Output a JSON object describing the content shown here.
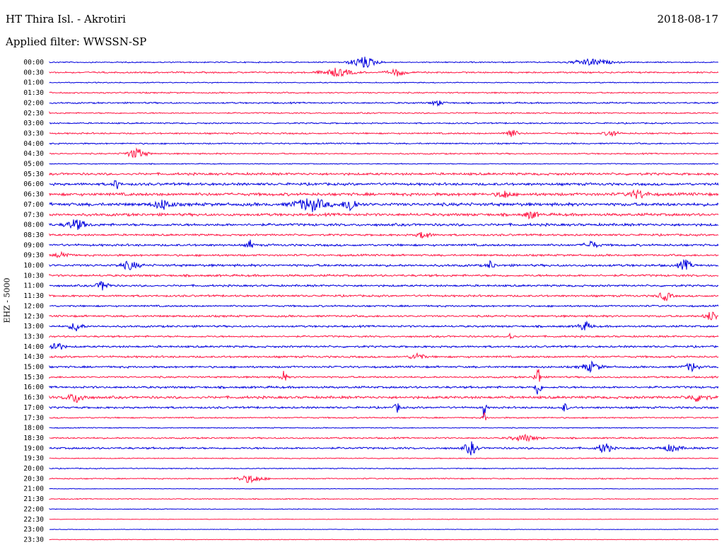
{
  "header": {
    "station": "HT Thira Isl. - Akrotiri",
    "date": "2018-08-17",
    "filter": "Applied filter: WWSSN-SP",
    "channel": "EHZ - 5000"
  },
  "colors": {
    "trace_a": "#0000dd",
    "trace_b": "#ff1744",
    "text": "#000000",
    "background": "#ffffff"
  },
  "chart_data": {
    "type": "line",
    "description_type": "helicorder",
    "row_labels": [
      "00:00",
      "00:30",
      "01:00",
      "01:30",
      "02:00",
      "02:30",
      "03:00",
      "03:30",
      "04:00",
      "04:30",
      "05:00",
      "05:30",
      "06:00",
      "06:30",
      "07:00",
      "07:30",
      "08:00",
      "08:30",
      "09:00",
      "09:30",
      "10:00",
      "10:30",
      "11:00",
      "11:30",
      "12:00",
      "12:30",
      "13:00",
      "13:30",
      "14:00",
      "14:30",
      "15:00",
      "15:30",
      "16:00",
      "16:30",
      "17:00",
      "17:30",
      "18:00",
      "18:30",
      "19:00",
      "19:30",
      "20:00",
      "20:30",
      "21:00",
      "21:30",
      "22:00",
      "22:30",
      "23:00",
      "23:30"
    ],
    "row_colors": [
      "trace_a",
      "trace_b"
    ],
    "row_noise": [
      0.6,
      0.8,
      0.5,
      0.7,
      0.8,
      0.7,
      0.7,
      0.8,
      0.7,
      0.7,
      0.5,
      1.2,
      1.3,
      1.5,
      1.6,
      1.4,
      1.3,
      1.0,
      1.1,
      1.0,
      1.2,
      1.1,
      1.0,
      1.0,
      0.9,
      1.0,
      1.0,
      0.9,
      1.0,
      1.0,
      1.0,
      0.9,
      1.1,
      1.3,
      1.0,
      0.7,
      0.5,
      0.8,
      1.0,
      0.5,
      0.5,
      0.6,
      0.3,
      0.5,
      0.4,
      0.3,
      0.3,
      0.3
    ],
    "events": [
      {
        "row": 0,
        "pos": 0.47,
        "amp": 9,
        "dur": 0.04
      },
      {
        "row": 0,
        "pos": 0.81,
        "amp": 5,
        "dur": 0.06
      },
      {
        "row": 1,
        "pos": 0.43,
        "amp": 6,
        "dur": 0.05
      },
      {
        "row": 1,
        "pos": 0.52,
        "amp": 5,
        "dur": 0.03
      },
      {
        "row": 4,
        "pos": 0.58,
        "amp": 4,
        "dur": 0.02
      },
      {
        "row": 7,
        "pos": 0.69,
        "amp": 7,
        "dur": 0.02
      },
      {
        "row": 7,
        "pos": 0.84,
        "amp": 5,
        "dur": 0.02
      },
      {
        "row": 9,
        "pos": 0.13,
        "amp": 8,
        "dur": 0.03
      },
      {
        "row": 12,
        "pos": 0.1,
        "amp": 8,
        "dur": 0.01
      },
      {
        "row": 13,
        "pos": 0.68,
        "amp": 6,
        "dur": 0.02
      },
      {
        "row": 13,
        "pos": 0.88,
        "amp": 6,
        "dur": 0.03
      },
      {
        "row": 14,
        "pos": 0.17,
        "amp": 7,
        "dur": 0.03
      },
      {
        "row": 14,
        "pos": 0.39,
        "amp": 10,
        "dur": 0.05
      },
      {
        "row": 14,
        "pos": 0.45,
        "amp": 12,
        "dur": 0.02
      },
      {
        "row": 15,
        "pos": 0.72,
        "amp": 6,
        "dur": 0.02
      },
      {
        "row": 16,
        "pos": 0.04,
        "amp": 8,
        "dur": 0.03
      },
      {
        "row": 17,
        "pos": 0.56,
        "amp": 6,
        "dur": 0.02
      },
      {
        "row": 18,
        "pos": 0.3,
        "amp": 7,
        "dur": 0.01
      },
      {
        "row": 18,
        "pos": 0.81,
        "amp": 6,
        "dur": 0.02
      },
      {
        "row": 19,
        "pos": 0.02,
        "amp": 6,
        "dur": 0.02
      },
      {
        "row": 20,
        "pos": 0.12,
        "amp": 6,
        "dur": 0.03
      },
      {
        "row": 20,
        "pos": 0.66,
        "amp": 8,
        "dur": 0.01
      },
      {
        "row": 20,
        "pos": 0.95,
        "amp": 8,
        "dur": 0.02
      },
      {
        "row": 22,
        "pos": 0.08,
        "amp": 7,
        "dur": 0.02
      },
      {
        "row": 23,
        "pos": 0.92,
        "amp": 7,
        "dur": 0.02
      },
      {
        "row": 25,
        "pos": 0.99,
        "amp": 8,
        "dur": 0.02
      },
      {
        "row": 26,
        "pos": 0.04,
        "amp": 7,
        "dur": 0.02
      },
      {
        "row": 26,
        "pos": 0.8,
        "amp": 7,
        "dur": 0.02
      },
      {
        "row": 27,
        "pos": 0.69,
        "amp": 6,
        "dur": 0.01
      },
      {
        "row": 28,
        "pos": 0.01,
        "amp": 8,
        "dur": 0.02
      },
      {
        "row": 29,
        "pos": 0.55,
        "amp": 6,
        "dur": 0.02
      },
      {
        "row": 30,
        "pos": 0.81,
        "amp": 7,
        "dur": 0.03
      },
      {
        "row": 30,
        "pos": 0.96,
        "amp": 7,
        "dur": 0.02
      },
      {
        "row": 31,
        "pos": 0.35,
        "amp": 9,
        "dur": 0.01
      },
      {
        "row": 31,
        "pos": 0.73,
        "amp": 16,
        "dur": 0.01
      },
      {
        "row": 32,
        "pos": 0.73,
        "amp": 14,
        "dur": 0.01
      },
      {
        "row": 33,
        "pos": 0.04,
        "amp": 7,
        "dur": 0.03
      },
      {
        "row": 33,
        "pos": 0.97,
        "amp": 6,
        "dur": 0.03
      },
      {
        "row": 34,
        "pos": 0.52,
        "amp": 7,
        "dur": 0.01
      },
      {
        "row": 34,
        "pos": 0.65,
        "amp": 20,
        "dur": 0.005
      },
      {
        "row": 34,
        "pos": 0.77,
        "amp": 7,
        "dur": 0.01
      },
      {
        "row": 35,
        "pos": 0.65,
        "amp": 12,
        "dur": 0.005
      },
      {
        "row": 37,
        "pos": 0.71,
        "amp": 5,
        "dur": 0.04
      },
      {
        "row": 38,
        "pos": 0.63,
        "amp": 10,
        "dur": 0.02
      },
      {
        "row": 38,
        "pos": 0.83,
        "amp": 9,
        "dur": 0.02
      },
      {
        "row": 38,
        "pos": 0.93,
        "amp": 5,
        "dur": 0.03
      },
      {
        "row": 41,
        "pos": 0.3,
        "amp": 6,
        "dur": 0.04
      }
    ]
  }
}
